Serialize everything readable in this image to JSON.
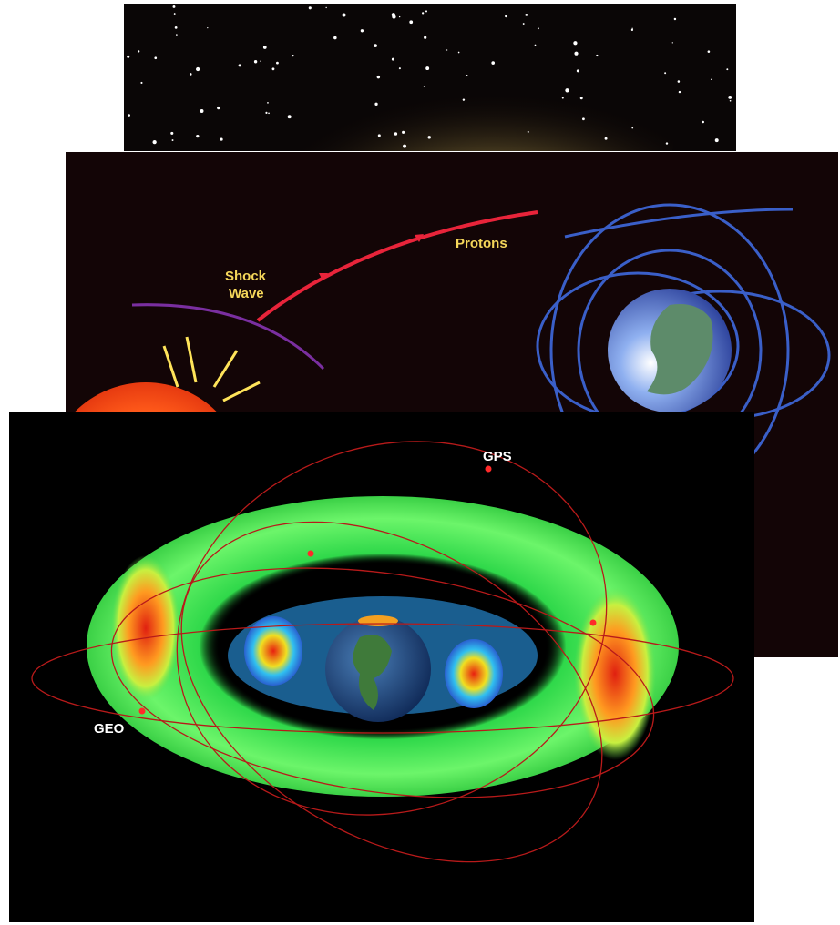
{
  "sun_earth_image": {
    "shock_label": [
      "Shock",
      "Wave"
    ],
    "protons_label": "Protons"
  },
  "radiation_belts_image": {
    "gps_label": "GPS",
    "geo_label": "GEO"
  }
}
